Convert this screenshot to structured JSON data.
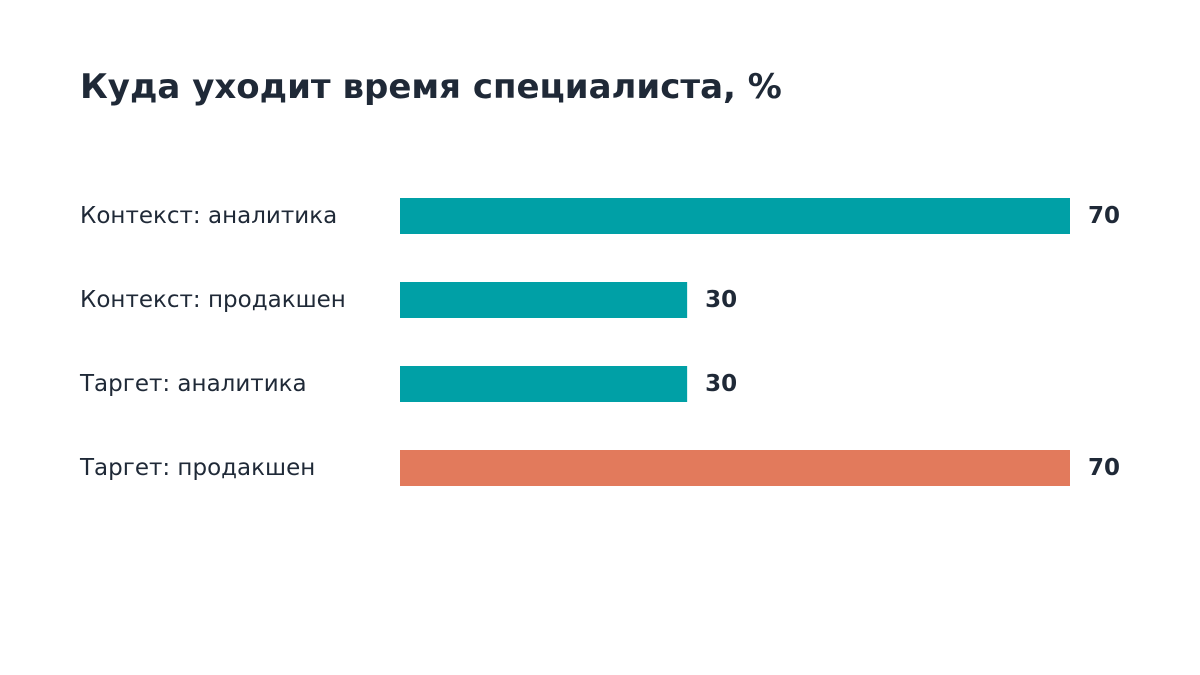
{
  "chart_data": {
    "type": "bar",
    "orientation": "horizontal",
    "title": "Куда уходит время специалиста, %",
    "categories": [
      "Контекст: аналитика",
      "Контекст: продакшен",
      "Таргет: аналитика",
      "Таргет: продакшен"
    ],
    "values": [
      70,
      30,
      30,
      70
    ],
    "value_labels": [
      "70",
      "30",
      "30",
      "70"
    ],
    "xlim": [
      0,
      70
    ],
    "grid": false,
    "legend": "none",
    "bar_colors": [
      "#00a0a6",
      "#00a0a6",
      "#00a0a6",
      "#e27a5c"
    ]
  }
}
